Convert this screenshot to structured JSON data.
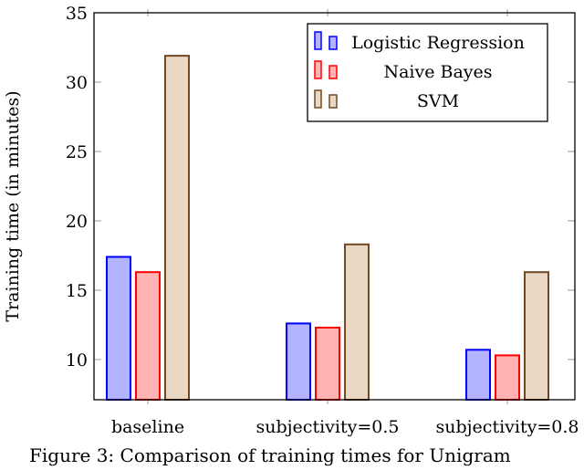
{
  "chart_data": {
    "type": "bar",
    "title": "",
    "xlabel": "",
    "ylabel": "Training time (in minutes)",
    "ylim": [
      7.1,
      35
    ],
    "yticks": [
      10,
      15,
      20,
      25,
      30,
      35
    ],
    "categories": [
      "baseline",
      "subjectivity=0.5",
      "subjectivity=0.8"
    ],
    "series": [
      {
        "name": "Logistic Regression",
        "values": [
          17.4,
          12.6,
          10.7
        ],
        "stroke": "#0000ff",
        "fill": "#b3b3ff"
      },
      {
        "name": "Naive Bayes",
        "values": [
          16.3,
          12.3,
          10.3
        ],
        "stroke": "#ff0000",
        "fill": "#ffb3b3"
      },
      {
        "name": "SVM",
        "values": [
          31.9,
          18.3,
          16.3
        ],
        "stroke": "#6f4a22",
        "fill": "#ead8c4"
      }
    ],
    "legend_position": "top-right",
    "grid": false
  },
  "caption": "Figure 3: Comparison of training times for Unigram"
}
